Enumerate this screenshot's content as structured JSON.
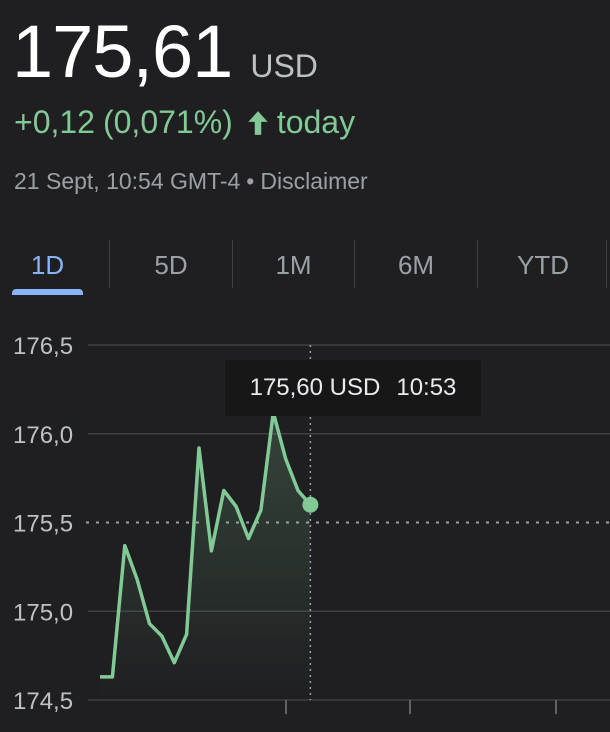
{
  "quote": {
    "price": "175,61",
    "currency": "USD",
    "change": "+0,12",
    "change_percent": "(0,071%)",
    "change_period": "today",
    "direction_icon": "arrow-up-icon",
    "positive_color": "#81c995",
    "timestamp": "21 Sept, 10:54 GMT-4",
    "separator": "•",
    "disclaimer": "Disclaimer"
  },
  "tabs": [
    {
      "label": "1D",
      "active": true
    },
    {
      "label": "5D",
      "active": false
    },
    {
      "label": "1M",
      "active": false
    },
    {
      "label": "6M",
      "active": false
    },
    {
      "label": "YTD",
      "active": false
    }
  ],
  "tooltip": {
    "value": "175,60 USD",
    "time": "10:53"
  },
  "chart_data": {
    "type": "line",
    "y_tick_labels": [
      "176,5",
      "176,0",
      "175,5",
      "175,0",
      "174,5"
    ],
    "y_ticks": [
      176.5,
      176.0,
      175.5,
      175.0,
      174.5
    ],
    "ylim": [
      174.5,
      176.5
    ],
    "x_range": [
      0,
      60
    ],
    "reference_value": 175.5,
    "line_color": "#81c995",
    "grid": true,
    "series": [
      {
        "x": [
          0,
          1.5,
          3,
          4.5,
          6,
          7.5,
          9,
          10.5,
          12,
          13.5,
          15,
          16.5,
          18,
          19.5,
          21,
          22.5,
          24,
          25.5,
          27,
          28.5,
          30,
          31.5,
          33
        ],
        "values": [
          174.63,
          174.63,
          175.37,
          175.18,
          174.93,
          174.86,
          174.71,
          174.87,
          175.92,
          175.34,
          175.68,
          175.59,
          175.41,
          175.57,
          176.12,
          175.86,
          175.68,
          175.6,
          null,
          null,
          null,
          null,
          null
        ]
      }
    ],
    "highlight": {
      "x": 25.5,
      "value": 175.6
    }
  }
}
